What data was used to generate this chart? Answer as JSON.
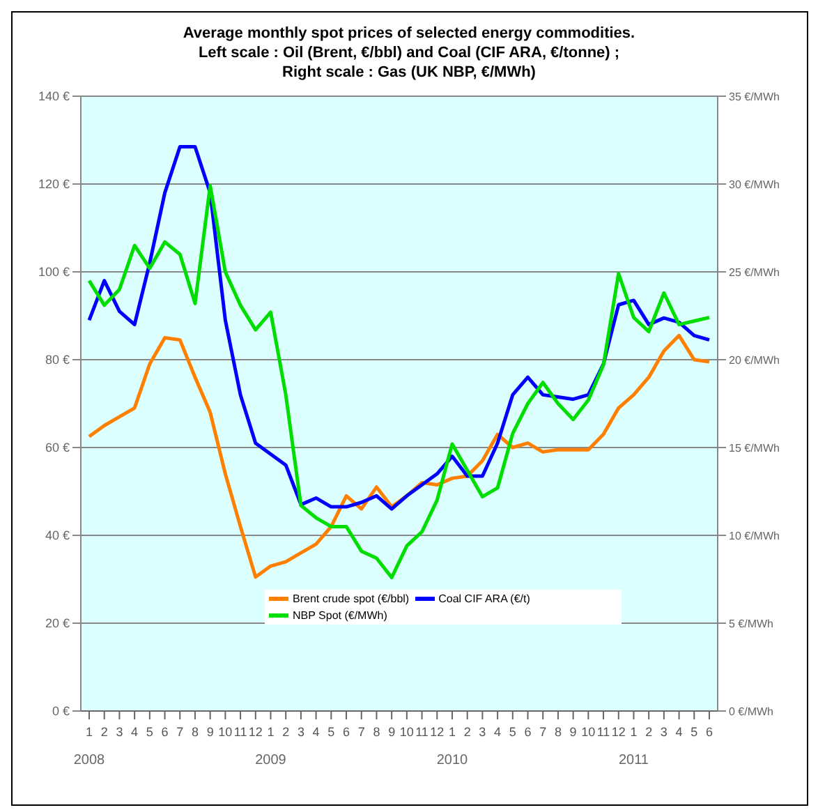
{
  "chart_data": {
    "type": "line",
    "title": "Average monthly spot prices of selected energy commodities.",
    "subtitle": "Left scale : Oil (Brent, €/bbl) and Coal (CIF ARA, €/tonne) ;\nRight scale : Gas (UK NBP, €/MWh)",
    "categories": [
      "1",
      "2",
      "3",
      "4",
      "5",
      "6",
      "7",
      "8",
      "9",
      "10",
      "11",
      "12",
      "1",
      "2",
      "3",
      "4",
      "5",
      "6",
      "7",
      "8",
      "9",
      "10",
      "11",
      "12",
      "1",
      "2",
      "3",
      "4",
      "5",
      "6",
      "7",
      "8",
      "9",
      "10",
      "11",
      "12",
      "1",
      "2",
      "3",
      "4",
      "5",
      "6"
    ],
    "annotations": [
      "2008",
      "2009",
      "2010",
      "2011"
    ],
    "series": [
      {
        "name": "Brent crude spot (€/bbl)",
        "color": "#ff8000",
        "values": [
          62.5,
          65,
          67,
          69,
          79,
          85,
          84.5,
          76,
          68,
          54,
          42,
          30.5,
          33,
          34,
          36,
          38,
          42,
          49,
          46,
          51,
          46.5,
          49,
          52,
          51.5,
          53,
          53.5,
          57,
          63,
          60,
          61,
          59,
          59.5,
          59.5,
          59.5,
          63,
          69,
          72,
          76,
          82,
          85.5,
          80,
          79.5
        ]
      },
      {
        "name": "Coal CIF ARA (€/t)",
        "color": "#0000ff",
        "values": [
          89,
          98,
          91,
          88,
          102,
          118,
          128.5,
          128.5,
          118,
          89,
          72,
          61,
          58.5,
          56,
          47,
          48.5,
          46.5,
          46.5,
          47.5,
          49,
          46,
          49,
          51.5,
          54,
          58,
          53.5,
          53.5,
          61,
          72,
          76,
          72,
          71.5,
          71,
          72,
          79,
          92.5,
          93.5,
          88,
          89.5,
          88.5,
          85.5,
          84.5
        ]
      },
      {
        "name": "NBP Spot (€/MWh)",
        "color": "#00dd00",
        "axis": "y2",
        "values": [
          24.5,
          23.1,
          24,
          26.5,
          25.2,
          26.7,
          26,
          23.2,
          29.9,
          25,
          23.1,
          21.7,
          22.7,
          18,
          11.7,
          11,
          10.5,
          10.5,
          9.1,
          8.7,
          7.6,
          9.4,
          10.2,
          12,
          15.2,
          13.7,
          12.2,
          12.7,
          15.8,
          17.5,
          18.7,
          17.5,
          16.6,
          17.7,
          19.7,
          24.9,
          22.4,
          21.6,
          23.8,
          22,
          22.2,
          22.4
        ]
      }
    ],
    "ylim": [
      0,
      140
    ],
    "yticks": [
      {
        "value": 0,
        "label": "0 €"
      },
      {
        "value": 20,
        "label": "20 €"
      },
      {
        "value": 40,
        "label": "40 €"
      },
      {
        "value": 60,
        "label": "60 €"
      },
      {
        "value": 80,
        "label": "80 €"
      },
      {
        "value": 100,
        "label": "100 €"
      },
      {
        "value": 120,
        "label": "120 €"
      },
      {
        "value": 140,
        "label": "140 €"
      }
    ],
    "y2lim": [
      0,
      35
    ],
    "y2ticks": [
      {
        "value": 0,
        "label": "0 €/MWh"
      },
      {
        "value": 5,
        "label": "5 €/MWh"
      },
      {
        "value": 10,
        "label": "10 €/MWh"
      },
      {
        "value": 15,
        "label": "15 €/MWh"
      },
      {
        "value": 20,
        "label": "20 €/MWh"
      },
      {
        "value": 25,
        "label": "25 €/MWh"
      },
      {
        "value": 30,
        "label": "30 €/MWh"
      },
      {
        "value": 35,
        "label": "35 €/MWh"
      }
    ],
    "grid": "y",
    "legend": "bottom",
    "marker": "none",
    "line_style": "solid"
  }
}
